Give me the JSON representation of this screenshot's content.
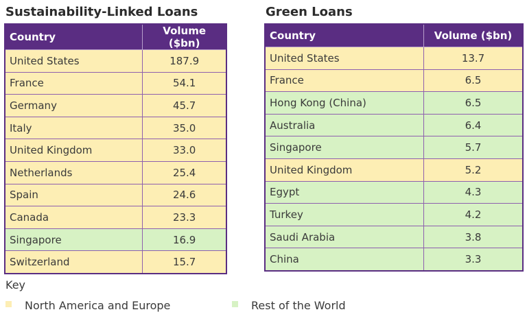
{
  "colors": {
    "header": "#5a2d82",
    "north_america_europe": "#fdeeb4",
    "rest_of_world": "#d7f2c4"
  },
  "chart_data": [
    {
      "type": "table",
      "title": "Sustainability-Linked Loans",
      "columns": [
        "Country",
        "Volume ($bn)"
      ],
      "rows": [
        {
          "country": "United States",
          "volume": "187.9",
          "group": "north_america_europe"
        },
        {
          "country": "France",
          "volume": "54.1",
          "group": "north_america_europe"
        },
        {
          "country": "Germany",
          "volume": "45.7",
          "group": "north_america_europe"
        },
        {
          "country": "Italy",
          "volume": "35.0",
          "group": "north_america_europe"
        },
        {
          "country": "United Kingdom",
          "volume": "33.0",
          "group": "north_america_europe"
        },
        {
          "country": "Netherlands",
          "volume": "25.4",
          "group": "north_america_europe"
        },
        {
          "country": "Spain",
          "volume": "24.6",
          "group": "north_america_europe"
        },
        {
          "country": "Canada",
          "volume": "23.3",
          "group": "north_america_europe"
        },
        {
          "country": "Singapore",
          "volume": "16.9",
          "group": "rest_of_world"
        },
        {
          "country": "Switzerland",
          "volume": "15.7",
          "group": "north_america_europe"
        }
      ]
    },
    {
      "type": "table",
      "title": "Green Loans",
      "columns": [
        "Country",
        "Volume ($bn)"
      ],
      "rows": [
        {
          "country": "United States",
          "volume": "13.7",
          "group": "north_america_europe"
        },
        {
          "country": "France",
          "volume": "6.5",
          "group": "north_america_europe"
        },
        {
          "country": "Hong Kong (China)",
          "volume": "6.5",
          "group": "rest_of_world"
        },
        {
          "country": "Australia",
          "volume": "6.4",
          "group": "rest_of_world"
        },
        {
          "country": "Singapore",
          "volume": "5.7",
          "group": "rest_of_world"
        },
        {
          "country": "United Kingdom",
          "volume": "5.2",
          "group": "north_america_europe"
        },
        {
          "country": "Egypt",
          "volume": "4.3",
          "group": "rest_of_world"
        },
        {
          "country": "Turkey",
          "volume": "4.2",
          "group": "rest_of_world"
        },
        {
          "country": "Saudi Arabia",
          "volume": "3.8",
          "group": "rest_of_world"
        },
        {
          "country": "China",
          "volume": "3.3",
          "group": "rest_of_world"
        }
      ]
    }
  ],
  "key": {
    "title": "Key",
    "items": [
      {
        "label": "North America and Europe",
        "group": "north_america_europe"
      },
      {
        "label": "Rest of the World",
        "group": "rest_of_world"
      }
    ]
  }
}
